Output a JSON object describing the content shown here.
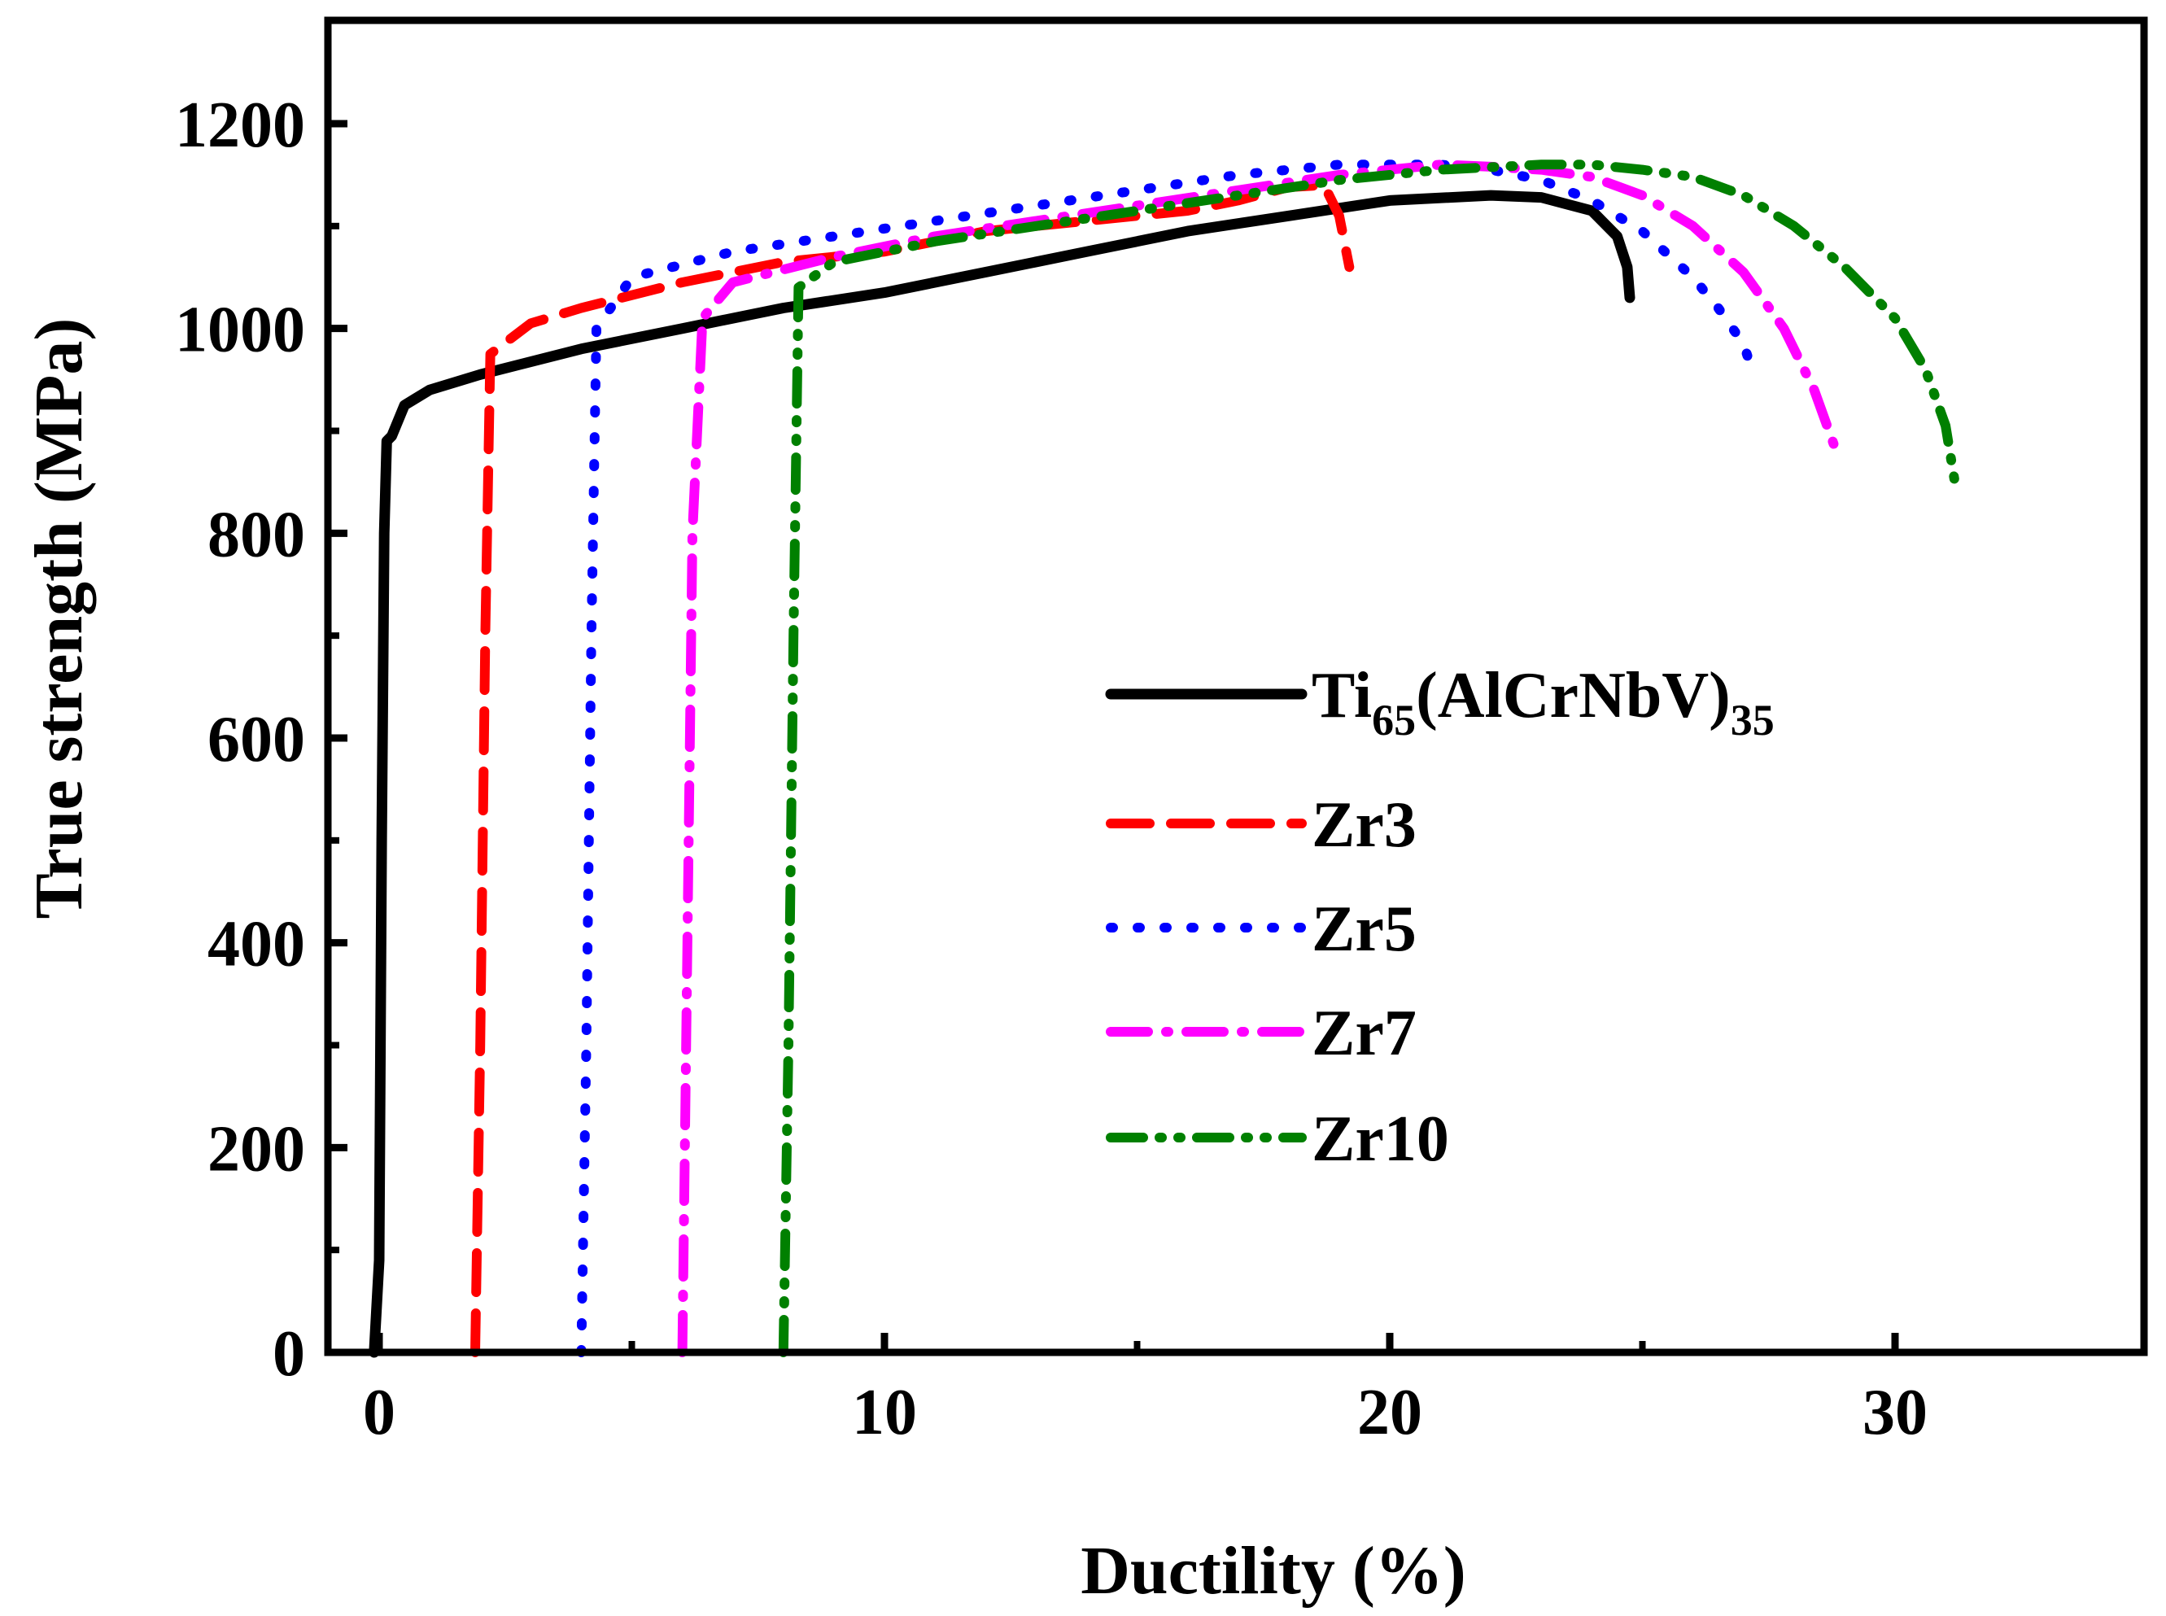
{
  "chart_data": {
    "type": "line",
    "title": "",
    "xlabel": "Ductility (%)",
    "ylabel": "True strength (MPa)",
    "xlim": [
      -1,
      35
    ],
    "ylim": [
      0,
      1300
    ],
    "xticks": [
      0,
      10,
      20,
      30
    ],
    "xtick_labels": [
      "0",
      "10",
      "20",
      "30"
    ],
    "yticks": [
      0,
      200,
      400,
      600,
      800,
      1000,
      1200
    ],
    "ytick_labels": [
      "0",
      "200",
      "400",
      "600",
      "800",
      "1000",
      "1200"
    ],
    "grid": false,
    "legend_position": "center-right",
    "series": [
      {
        "name": "Ti65(AlCrNbV)35",
        "legend_label": {
          "base": "Ti",
          "sub1": "65",
          "mid": "(AlCrNbV)",
          "sub2": "35"
        },
        "color": "#000000",
        "style": "solid",
        "x": [
          -0.1,
          0.0,
          0.05,
          0.1,
          0.15,
          0.25,
          0.5,
          1,
          2,
          4,
          6,
          8,
          10,
          12,
          14,
          16,
          18,
          20,
          22,
          23,
          24,
          24.5,
          24.7,
          24.75
        ],
        "y": [
          0,
          90,
          500,
          800,
          890,
          895,
          925,
          940,
          955,
          980,
          1000,
          1020,
          1035,
          1055,
          1075,
          1095,
          1110,
          1125,
          1130,
          1128,
          1115,
          1090,
          1060,
          1030
        ]
      },
      {
        "name": "Zr3",
        "color": "#ff0000",
        "style": "dashed",
        "x": [
          1.9,
          2.0,
          2.1,
          2.2,
          3.0,
          4.0,
          6.0,
          8.0,
          10.0,
          12.0,
          14.0,
          16.0,
          17.0,
          18.0,
          18.7,
          19.0,
          19.2
        ],
        "y": [
          0,
          300,
          700,
          975,
          1005,
          1020,
          1045,
          1065,
          1075,
          1095,
          1105,
          1115,
          1125,
          1138,
          1140,
          1110,
          1060
        ]
      },
      {
        "name": "Zr5",
        "color": "#0000ff",
        "style": "dotted",
        "x": [
          4.0,
          4.1,
          4.2,
          4.3,
          5.0,
          7.0,
          9.0,
          11.0,
          13.0,
          15.0,
          17.0,
          19.0,
          21.0,
          22.0,
          23.0,
          24.0,
          25.0,
          26.0,
          26.5,
          27.0,
          27.2
        ],
        "y": [
          0,
          300,
          700,
          1000,
          1050,
          1075,
          1090,
          1105,
          1120,
          1135,
          1150,
          1160,
          1160,
          1155,
          1145,
          1125,
          1095,
          1050,
          1020,
          985,
          955
        ]
      },
      {
        "name": "Zr7",
        "color": "#ff00ff",
        "style": "dash-dot",
        "x": [
          6.0,
          6.1,
          6.2,
          6.4,
          7.0,
          9.0,
          11.0,
          13.0,
          15.0,
          17.0,
          19.0,
          21.0,
          22.0,
          23.0,
          24.0,
          25.0,
          26.0,
          27.0,
          27.8,
          28.4,
          28.8
        ],
        "y": [
          0,
          400,
          800,
          1010,
          1045,
          1070,
          1090,
          1105,
          1120,
          1135,
          1150,
          1160,
          1158,
          1155,
          1148,
          1130,
          1100,
          1055,
          1000,
          940,
          885
        ]
      },
      {
        "name": "Zr10",
        "color": "#008000",
        "style": "dash-dot-dot",
        "x": [
          8.0,
          8.1,
          8.2,
          8.3,
          9.0,
          11.0,
          13.0,
          15.0,
          17.0,
          19.0,
          21.0,
          23.0,
          24.0,
          25.0,
          26.0,
          27.0,
          28.0,
          29.0,
          30.0,
          30.6,
          31.0,
          31.2
        ],
        "y": [
          0,
          300,
          700,
          1040,
          1065,
          1085,
          1100,
          1115,
          1130,
          1145,
          1155,
          1160,
          1160,
          1155,
          1148,
          1130,
          1100,
          1060,
          1010,
          960,
          905,
          845
        ]
      }
    ]
  }
}
